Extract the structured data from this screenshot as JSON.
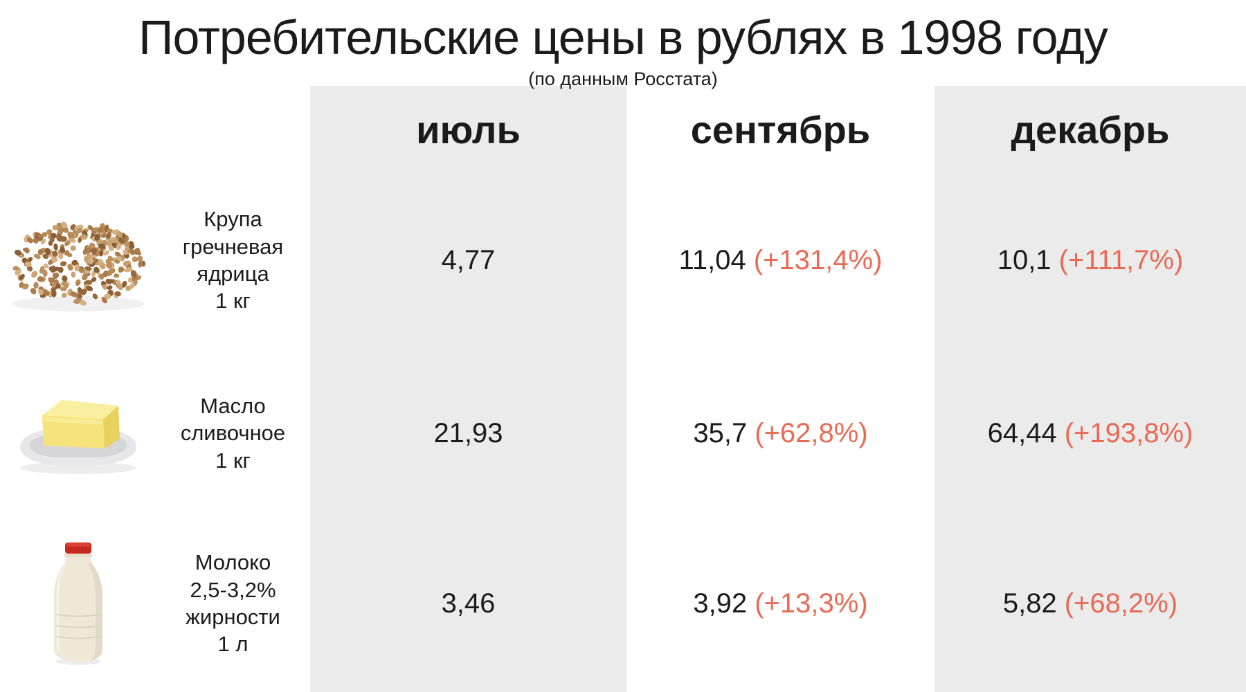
{
  "title": "Потребительские цены в рублях в 1998 году",
  "subtitle": "(по данным Росстата)",
  "colors": {
    "accent": "#e96a54",
    "column_bg": "#ebebeb",
    "text": "#1b1b1b"
  },
  "columns": [
    "июль",
    "сентябрь",
    "декабрь"
  ],
  "rows": [
    {
      "product": "Крупа гречневая ядрица 1 кг",
      "icon": "buckwheat-pile-image",
      "label_lines": [
        "Крупа",
        "гречневая",
        "ядрица",
        "1 кг"
      ],
      "values": [
        {
          "price": "4,77",
          "change": ""
        },
        {
          "price": "11,04",
          "change": "(+131,4%)"
        },
        {
          "price": "10,1",
          "change": "(+111,7%)"
        }
      ]
    },
    {
      "product": "Масло сливочное 1 кг",
      "icon": "butter-dish-image",
      "label_lines": [
        "Масло",
        "сливочное",
        "1 кг"
      ],
      "values": [
        {
          "price": "21,93",
          "change": ""
        },
        {
          "price": "35,7",
          "change": "(+62,8%)"
        },
        {
          "price": "64,44",
          "change": "(+193,8%)"
        }
      ]
    },
    {
      "product": "Молоко 2,5-3,2% жирности 1 л",
      "icon": "milk-bottle-image",
      "label_lines": [
        "Молоко",
        "2,5-3,2%",
        "жирности",
        "1 л"
      ],
      "values": [
        {
          "price": "3,46",
          "change": ""
        },
        {
          "price": "3,92",
          "change": "(+13,3%)"
        },
        {
          "price": "5,82",
          "change": "(+68,2%)"
        }
      ]
    }
  ],
  "chart_data": {
    "type": "table",
    "title": "Потребительские цены в рублях в 1998 году",
    "subtitle": "(по данным Росстата)",
    "columns": [
      "июль",
      "сентябрь",
      "декабрь"
    ],
    "rows": [
      {
        "product": "Крупа гречневая ядрица 1 кг",
        "prices": [
          4.77,
          11.04,
          10.1
        ],
        "change_pct_vs_july": [
          null,
          131.4,
          111.7
        ]
      },
      {
        "product": "Масло сливочное 1 кг",
        "prices": [
          21.93,
          35.7,
          64.44
        ],
        "change_pct_vs_july": [
          null,
          62.8,
          193.8
        ]
      },
      {
        "product": "Молоко 2,5-3,2% жирности 1 л",
        "prices": [
          3.46,
          3.92,
          5.82
        ],
        "change_pct_vs_july": [
          null,
          13.3,
          68.2
        ]
      }
    ]
  }
}
